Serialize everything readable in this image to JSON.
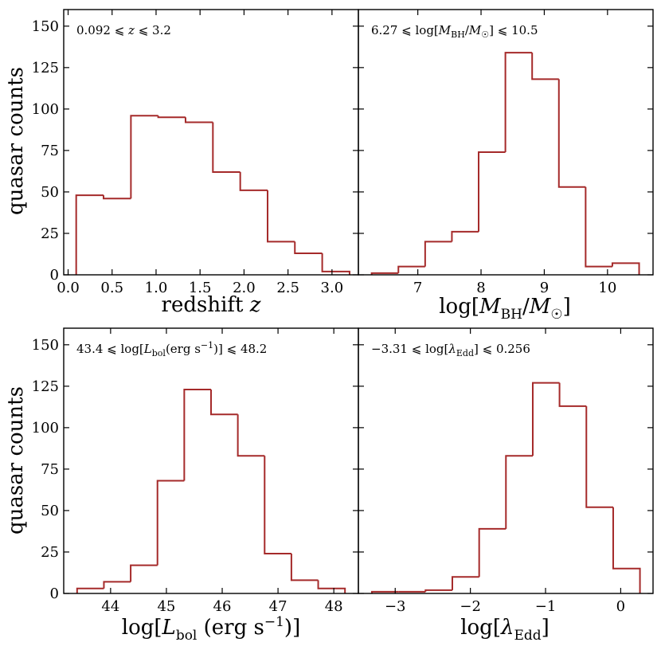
{
  "figure": {
    "line_color": "#a52a2a"
  },
  "chart_data": [
    {
      "type": "histogram",
      "id": "z",
      "xlabel": "redshift z",
      "ylabel": "quasar counts",
      "annotation": "0.092 ⩽ z ⩽ 3.2",
      "xlim": [
        -0.05,
        3.3
      ],
      "ylim": [
        0,
        160
      ],
      "xticks": [
        0.0,
        0.5,
        1.0,
        1.5,
        2.0,
        2.5,
        3.0
      ],
      "xtick_labels": [
        "0.0",
        "0.5",
        "1.0",
        "1.5",
        "2.0",
        "2.5",
        "3.0"
      ],
      "yticks": [
        0,
        25,
        50,
        75,
        100,
        125,
        150
      ],
      "ytick_labels": [
        "0",
        "25",
        "50",
        "75",
        "100",
        "125",
        "150"
      ],
      "bin_edges": [
        0.092,
        0.403,
        0.714,
        1.024,
        1.335,
        1.646,
        1.957,
        2.268,
        2.578,
        2.889,
        3.2
      ],
      "counts": [
        48,
        46,
        96,
        95,
        92,
        62,
        51,
        20,
        13,
        2
      ]
    },
    {
      "type": "histogram",
      "id": "mbh",
      "xlabel": "log[M_BH/M_☉]",
      "ylabel": "",
      "annotation": "6.27 ⩽ log[M_BH/M_☉] ⩽ 10.5",
      "xlim": [
        6.06,
        10.72
      ],
      "ylim": [
        0,
        160
      ],
      "xticks": [
        7,
        8,
        9,
        10
      ],
      "xtick_labels": [
        "7",
        "8",
        "9",
        "10"
      ],
      "yticks": [
        0,
        25,
        50,
        75,
        100,
        125,
        150
      ],
      "ytick_labels": [
        "",
        "",
        "",
        "",
        "",
        "",
        ""
      ],
      "bin_edges": [
        6.27,
        6.693,
        7.116,
        7.539,
        7.962,
        8.385,
        8.808,
        9.231,
        9.654,
        10.077,
        10.5
      ],
      "counts": [
        1,
        5,
        20,
        26,
        74,
        134,
        118,
        53,
        5,
        7
      ]
    },
    {
      "type": "histogram",
      "id": "lbol",
      "xlabel": "log[L_bol (erg s⁻¹)]",
      "ylabel": "quasar counts",
      "annotation": "43.4 ⩽ log[L_bol(erg s⁻¹)] ⩽ 48.2",
      "xlim": [
        43.16,
        48.44
      ],
      "ylim": [
        0,
        160
      ],
      "xticks": [
        44,
        45,
        46,
        47,
        48
      ],
      "xtick_labels": [
        "44",
        "45",
        "46",
        "47",
        "48"
      ],
      "yticks": [
        0,
        25,
        50,
        75,
        100,
        125,
        150
      ],
      "ytick_labels": [
        "0",
        "25",
        "50",
        "75",
        "100",
        "125",
        "150"
      ],
      "bin_edges": [
        43.4,
        43.88,
        44.36,
        44.84,
        45.32,
        45.8,
        46.28,
        46.76,
        47.24,
        47.72,
        48.2
      ],
      "counts": [
        3,
        7,
        17,
        68,
        123,
        108,
        83,
        24,
        8,
        3
      ]
    },
    {
      "type": "histogram",
      "id": "edd",
      "xlabel": "log[λ_Edd]",
      "ylabel": "",
      "annotation": "−3.31 ⩽ log[λ_Edd] ⩽ 0.256",
      "xlim": [
        -3.49,
        0.43
      ],
      "ylim": [
        0,
        160
      ],
      "xticks": [
        -3,
        -2,
        -1,
        0
      ],
      "xtick_labels": [
        "−3",
        "−2",
        "−1",
        "0"
      ],
      "yticks": [
        0,
        25,
        50,
        75,
        100,
        125,
        150
      ],
      "ytick_labels": [
        "",
        "",
        "",
        "",
        "",
        "",
        ""
      ],
      "bin_edges": [
        -3.31,
        -2.953,
        -2.597,
        -2.24,
        -1.883,
        -1.527,
        -1.17,
        -0.814,
        -0.457,
        -0.1,
        0.256
      ],
      "counts": [
        1,
        1,
        2,
        10,
        39,
        83,
        127,
        113,
        52,
        15
      ]
    }
  ]
}
